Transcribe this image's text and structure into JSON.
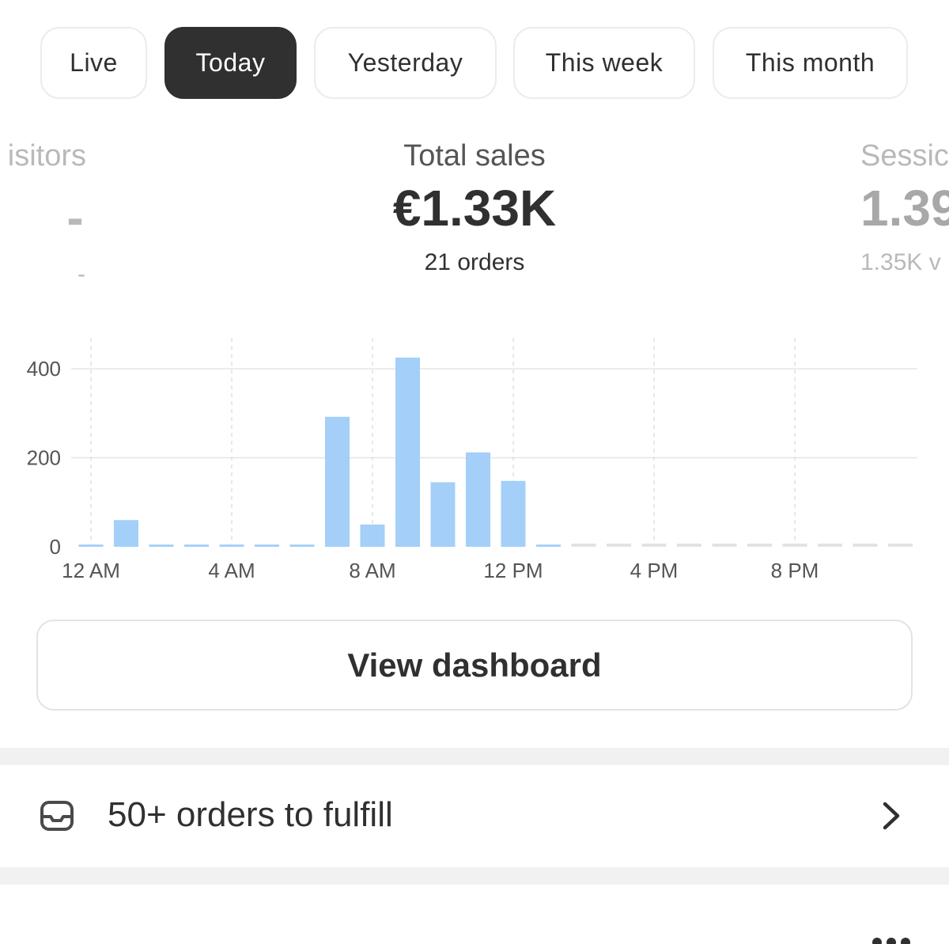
{
  "tabs": [
    {
      "label": "Live",
      "active": false
    },
    {
      "label": "Today",
      "active": true
    },
    {
      "label": "Yesterday",
      "active": false
    },
    {
      "label": "This week",
      "active": false
    },
    {
      "label": "This month",
      "active": false
    }
  ],
  "metrics": {
    "visitors": {
      "label": "isitors",
      "value": "-",
      "sub": "-"
    },
    "total_sales": {
      "label": "Total sales",
      "value": "€1.33K",
      "sub": "21 orders"
    },
    "sessions": {
      "label": "Sessic",
      "value": "1.39",
      "sub": "1.35K v"
    }
  },
  "chart_data": {
    "type": "bar",
    "ylim": [
      0,
      400
    ],
    "y_ticks": [
      "400",
      "200",
      "0"
    ],
    "x_tick_labels": [
      "12 AM",
      "4 AM",
      "8 AM",
      "12 PM",
      "4 PM",
      "8 PM"
    ],
    "categories": [
      "12 AM",
      "1 AM",
      "2 AM",
      "3 AM",
      "4 AM",
      "5 AM",
      "6 AM",
      "7 AM",
      "8 AM",
      "9 AM",
      "10 AM",
      "11 AM",
      "12 PM",
      "1 PM",
      "2 PM",
      "3 PM",
      "4 PM",
      "5 PM",
      "6 PM",
      "7 PM",
      "8 PM",
      "9 PM",
      "10 PM",
      "11 PM"
    ],
    "values": [
      5,
      60,
      5,
      5,
      5,
      5,
      5,
      292,
      50,
      425,
      145,
      212,
      148,
      5,
      null,
      null,
      null,
      null,
      null,
      null,
      null,
      null,
      null,
      null
    ],
    "bar_color": "#a3cff8",
    "future_color": "#e3e3e3",
    "grid": true
  },
  "view_dashboard_label": "View dashboard",
  "orders_to_fulfill": {
    "icon": "inbox-icon",
    "label": "50+ orders to fulfill",
    "chevron": "chevron-right-icon"
  },
  "footer": {
    "icon": "more-horizontal-icon"
  }
}
